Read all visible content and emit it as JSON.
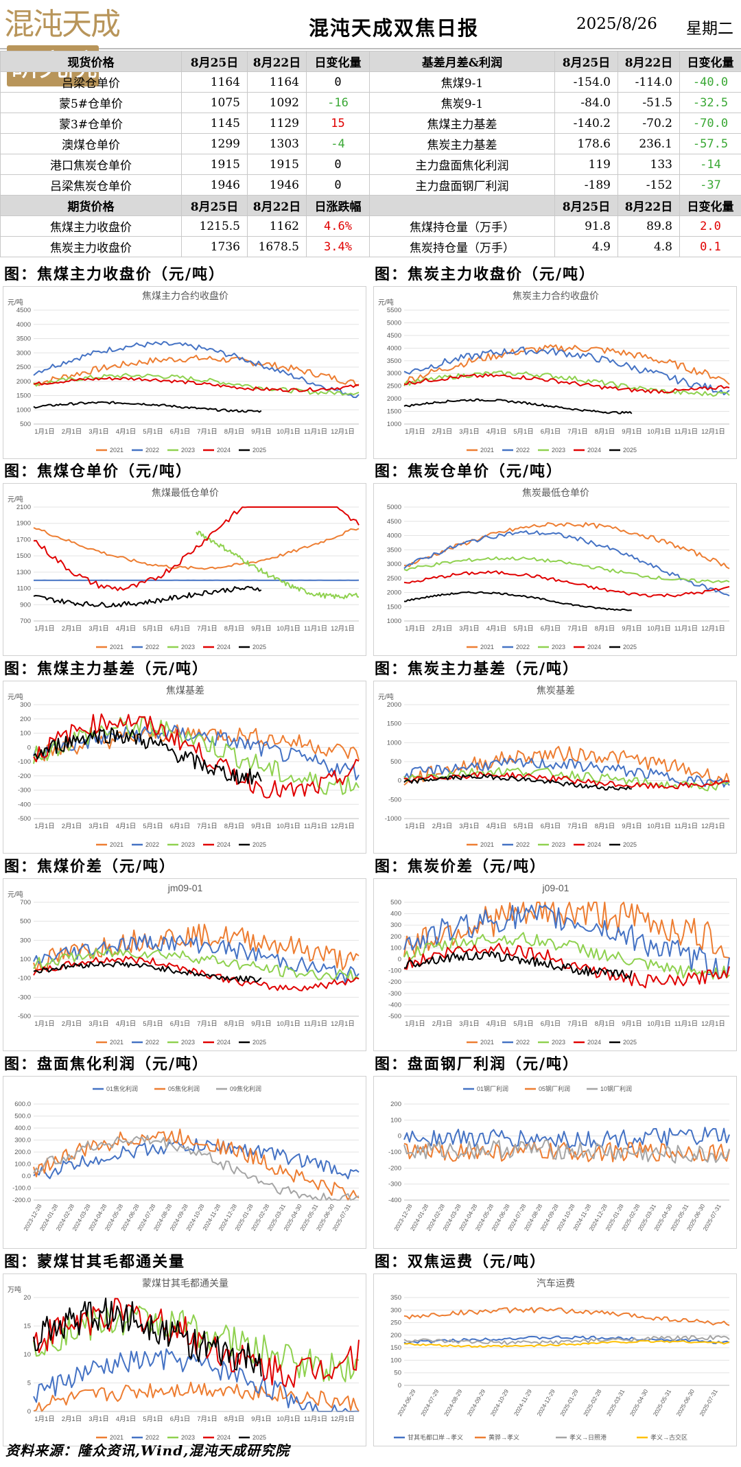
{
  "header": {
    "logo": "混沌天成",
    "logo_box": "研究院",
    "title": "混沌天成双焦日报",
    "date": "2025/8/26",
    "weekday": "星期二"
  },
  "table": {
    "h1": [
      "现货价格",
      "8月25日",
      "8月22日",
      "日变化量",
      "基差月差&利润",
      "8月25日",
      "8月22日",
      "日变化量"
    ],
    "rows": [
      [
        "吕梁仓单价",
        "1164",
        "1164",
        "0",
        "焦煤9-1",
        "-154.0",
        "-114.0",
        "-40.0"
      ],
      [
        "蒙5#仓单价",
        "1075",
        "1092",
        "-16",
        "焦炭9-1",
        "-84.0",
        "-51.5",
        "-32.5"
      ],
      [
        "蒙3#仓单价",
        "1145",
        "1129",
        "15",
        "焦煤主力基差",
        "-140.2",
        "-70.2",
        "-70.0"
      ],
      [
        "澳煤仓单价",
        "1299",
        "1303",
        "-4",
        "焦炭主力基差",
        "178.6",
        "236.1",
        "-57.5"
      ],
      [
        "港口焦炭仓单价",
        "1915",
        "1915",
        "0",
        "主力盘面焦化利润",
        "119",
        "133",
        "-14"
      ],
      [
        "吕梁焦炭仓单价",
        "1946",
        "1946",
        "0",
        "主力盘面钢厂利润",
        "-189",
        "-152",
        "-37"
      ]
    ],
    "h2": [
      "期货价格",
      "8月25日",
      "8月22日",
      "日涨跌幅",
      "",
      "8月25日",
      "8月22日",
      "日变化量"
    ],
    "rows2": [
      [
        "焦煤主力收盘价",
        "1215.5",
        "1162",
        "4.6%",
        "焦煤持仓量（万手）",
        "91.8",
        "89.8",
        "2.0"
      ],
      [
        "焦炭主力收盘价",
        "1736",
        "1678.5",
        "3.4%",
        "焦炭持仓量（万手）",
        "4.9",
        "4.8",
        "0.1"
      ]
    ]
  },
  "colors": {
    "y2021": "#ed7d31",
    "y2022": "#4472c4",
    "y2023": "#8fd14f",
    "y2024": "#e00000",
    "y2025": "#000000"
  },
  "panels": [
    {
      "title": "图：焦煤主力收盘价（元/吨）",
      "chart_title": "焦煤主力合约收盘价",
      "ylabel": "元/吨",
      "yticks": [
        "4500",
        "4000",
        "3500",
        "3000",
        "2500",
        "2000",
        "1500",
        "1000",
        "500"
      ],
      "ymin": 500,
      "ymax": 4500,
      "legend": [
        "2021",
        "2022",
        "2023",
        "2024",
        "2025"
      ]
    },
    {
      "title": "图：焦炭主力收盘价（元/吨）",
      "chart_title": "焦炭主力合约收盘价",
      "ylabel": "元/吨",
      "yticks": [
        "5500",
        "5000",
        "4500",
        "4000",
        "3500",
        "3000",
        "2500",
        "2000",
        "1500",
        "1000"
      ],
      "ymin": 1000,
      "ymax": 5500,
      "legend": [
        "2021",
        "2022",
        "2023",
        "2024",
        "2025"
      ]
    },
    {
      "title": "图：焦煤仓单价（元/吨）",
      "chart_title": "焦煤最低仓单价",
      "ylabel": "元/吨",
      "yticks": [
        "2100",
        "1900",
        "1700",
        "1500",
        "1300",
        "1100",
        "900",
        "700"
      ],
      "ymin": 700,
      "ymax": 2100,
      "legend": [
        "2021",
        "2022",
        "2023",
        "2024",
        "2025"
      ]
    },
    {
      "title": "图：焦炭仓单价（元/吨）",
      "chart_title": "焦炭最低仓单价",
      "ylabel": "",
      "yticks": [
        "5000",
        "4500",
        "4000",
        "3500",
        "3000",
        "2500",
        "2000",
        "1500",
        "1000"
      ],
      "ymin": 1000,
      "ymax": 5000,
      "legend": [
        "2021",
        "2022",
        "2023",
        "2024",
        "2025"
      ]
    },
    {
      "title": "图：焦煤主力基差（元/吨）",
      "chart_title": "焦煤基差",
      "ylabel": "元/吨",
      "yticks": [
        "300",
        "200",
        "100",
        "0",
        "-100",
        "-200",
        "-300",
        "-400",
        "-500"
      ],
      "ymin": -500,
      "ymax": 300,
      "legend": [
        "2021",
        "2022",
        "2023",
        "2024",
        "2025"
      ]
    },
    {
      "title": "图：焦炭主力基差（元/吨）",
      "chart_title": "焦炭基差",
      "ylabel": "元/吨",
      "yticks": [
        "2000",
        "1500",
        "1000",
        "500",
        "0",
        "-500",
        "-1000"
      ],
      "ymin": -1000,
      "ymax": 2000,
      "legend": [
        "2021",
        "2022",
        "2023",
        "2024",
        "2025"
      ]
    },
    {
      "title": "图：焦煤价差（元/吨）",
      "chart_title": "jm09-01",
      "ylabel": "元/吨",
      "yticks": [
        "700",
        "500",
        "300",
        "100",
        "-100",
        "-300",
        "-500"
      ],
      "ymin": -500,
      "ymax": 700,
      "legend": [
        "2021",
        "2022",
        "2023",
        "2024",
        "2025"
      ]
    },
    {
      "title": "图：焦炭价差（元/吨）",
      "chart_title": "j09-01",
      "ylabel": "",
      "yticks": [
        "500",
        "400",
        "300",
        "200",
        "100",
        "0",
        "-100",
        "-200",
        "-300",
        "-400",
        "-500"
      ],
      "ymin": -500,
      "ymax": 500,
      "legend": [
        "2021",
        "2022",
        "2023",
        "2024",
        "2025"
      ]
    },
    {
      "title": "图：盘面焦化利润（元/吨）",
      "chart_title": "",
      "ylabel": "",
      "yticks": [
        "600.0",
        "500.0",
        "400.0",
        "300.0",
        "200.0",
        "100.0",
        "0.0",
        "-100.0",
        "-200.0"
      ],
      "ymin": -200,
      "ymax": 600,
      "legend": [
        "01焦化利润",
        "05焦化利润",
        "09焦化利润"
      ]
    },
    {
      "title": "图：盘面钢厂利润（元/吨）",
      "chart_title": "",
      "ylabel": "",
      "yticks": [
        "200",
        "100",
        "0",
        "-100",
        "-200",
        "-300",
        "-400"
      ],
      "ymin": -400,
      "ymax": 200,
      "legend": [
        "01钢厂利润",
        "05钢厂利润",
        "10钢厂利润"
      ]
    },
    {
      "title": "图：蒙煤甘其毛都通关量",
      "chart_title": "蒙煤甘其毛都通关量",
      "ylabel": "万吨",
      "yticks": [
        "20",
        "15",
        "10",
        "5",
        "0"
      ],
      "ymin": 0,
      "ymax": 20,
      "legend": [
        "2021",
        "2022",
        "2023",
        "2024",
        "2025"
      ]
    },
    {
      "title": "图：双焦运费（元/吨）",
      "chart_title": "汽车运费",
      "ylabel": "",
      "yticks": [
        "350",
        "300",
        "250",
        "200",
        "150",
        "100",
        "50",
        "0"
      ],
      "ymin": 0,
      "ymax": 350,
      "legend": [
        "甘其毛都口岸→孝义",
        "黄骅→孝义",
        "孝义→日照港",
        "孝义→古交区"
      ]
    }
  ],
  "month_ticks": [
    "1月1日",
    "2月1日",
    "3月1日",
    "4月1日",
    "5月1日",
    "6月1日",
    "7月1日",
    "8月1日",
    "9月1日",
    "10月1日",
    "11月1日",
    "12月1日"
  ],
  "date_ticks_a": [
    "2023-12-28",
    "2024-01-28",
    "2024-02-28",
    "2024-03-28",
    "2024-04-28",
    "2024-05-28",
    "2024-06-28",
    "2024-07-28",
    "2024-08-28",
    "2024-09-28",
    "2024-10-28",
    "2024-11-28",
    "2024-12-28",
    "2025-01-28",
    "2025-02-28",
    "2025-03-31",
    "2025-04-30",
    "2025-05-31",
    "2025-06-30",
    "2025-07-31"
  ],
  "date_ticks_b": [
    "2024-06-29",
    "2024-07-29",
    "2024-08-29",
    "2024-09-29",
    "2024-10-29",
    "2024-11-29",
    "2024-12-29",
    "2025-01-29",
    "2025-02-28",
    "2025-03-31",
    "2025-04-30",
    "2025-05-31",
    "2025-06-30",
    "2025-07-31"
  ],
  "footer": "资料来源：隆众资讯,Wind,混沌天成研究院"
}
